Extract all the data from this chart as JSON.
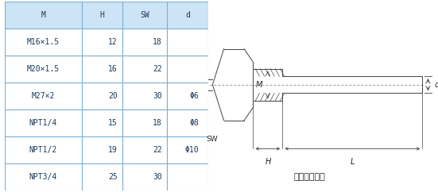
{
  "table": {
    "headers": [
      "M",
      "H",
      "SW",
      "d"
    ],
    "rows": [
      [
        "M16×1.5",
        "12",
        "18",
        ""
      ],
      [
        "M20×1.5",
        "16",
        "22",
        ""
      ],
      [
        "M27×2",
        "20",
        "30",
        ""
      ],
      [
        "NPT1/4",
        "15",
        "18",
        ""
      ],
      [
        "NPT1/2",
        "19",
        "22",
        ""
      ],
      [
        "NPT3/4",
        "25",
        "30",
        ""
      ]
    ],
    "header_bg": "#cce4f5",
    "border_color": "#7aaed6",
    "text_color": "#1a3a5c",
    "font_size": 7.0
  },
  "d_values": [
    "Φ6",
    "Φ8",
    "Φ10"
  ],
  "diagram": {
    "caption": "固定螺紋接頭",
    "bg_color": "#ffffff",
    "line_color": "#444444",
    "label_color": "#222222"
  }
}
